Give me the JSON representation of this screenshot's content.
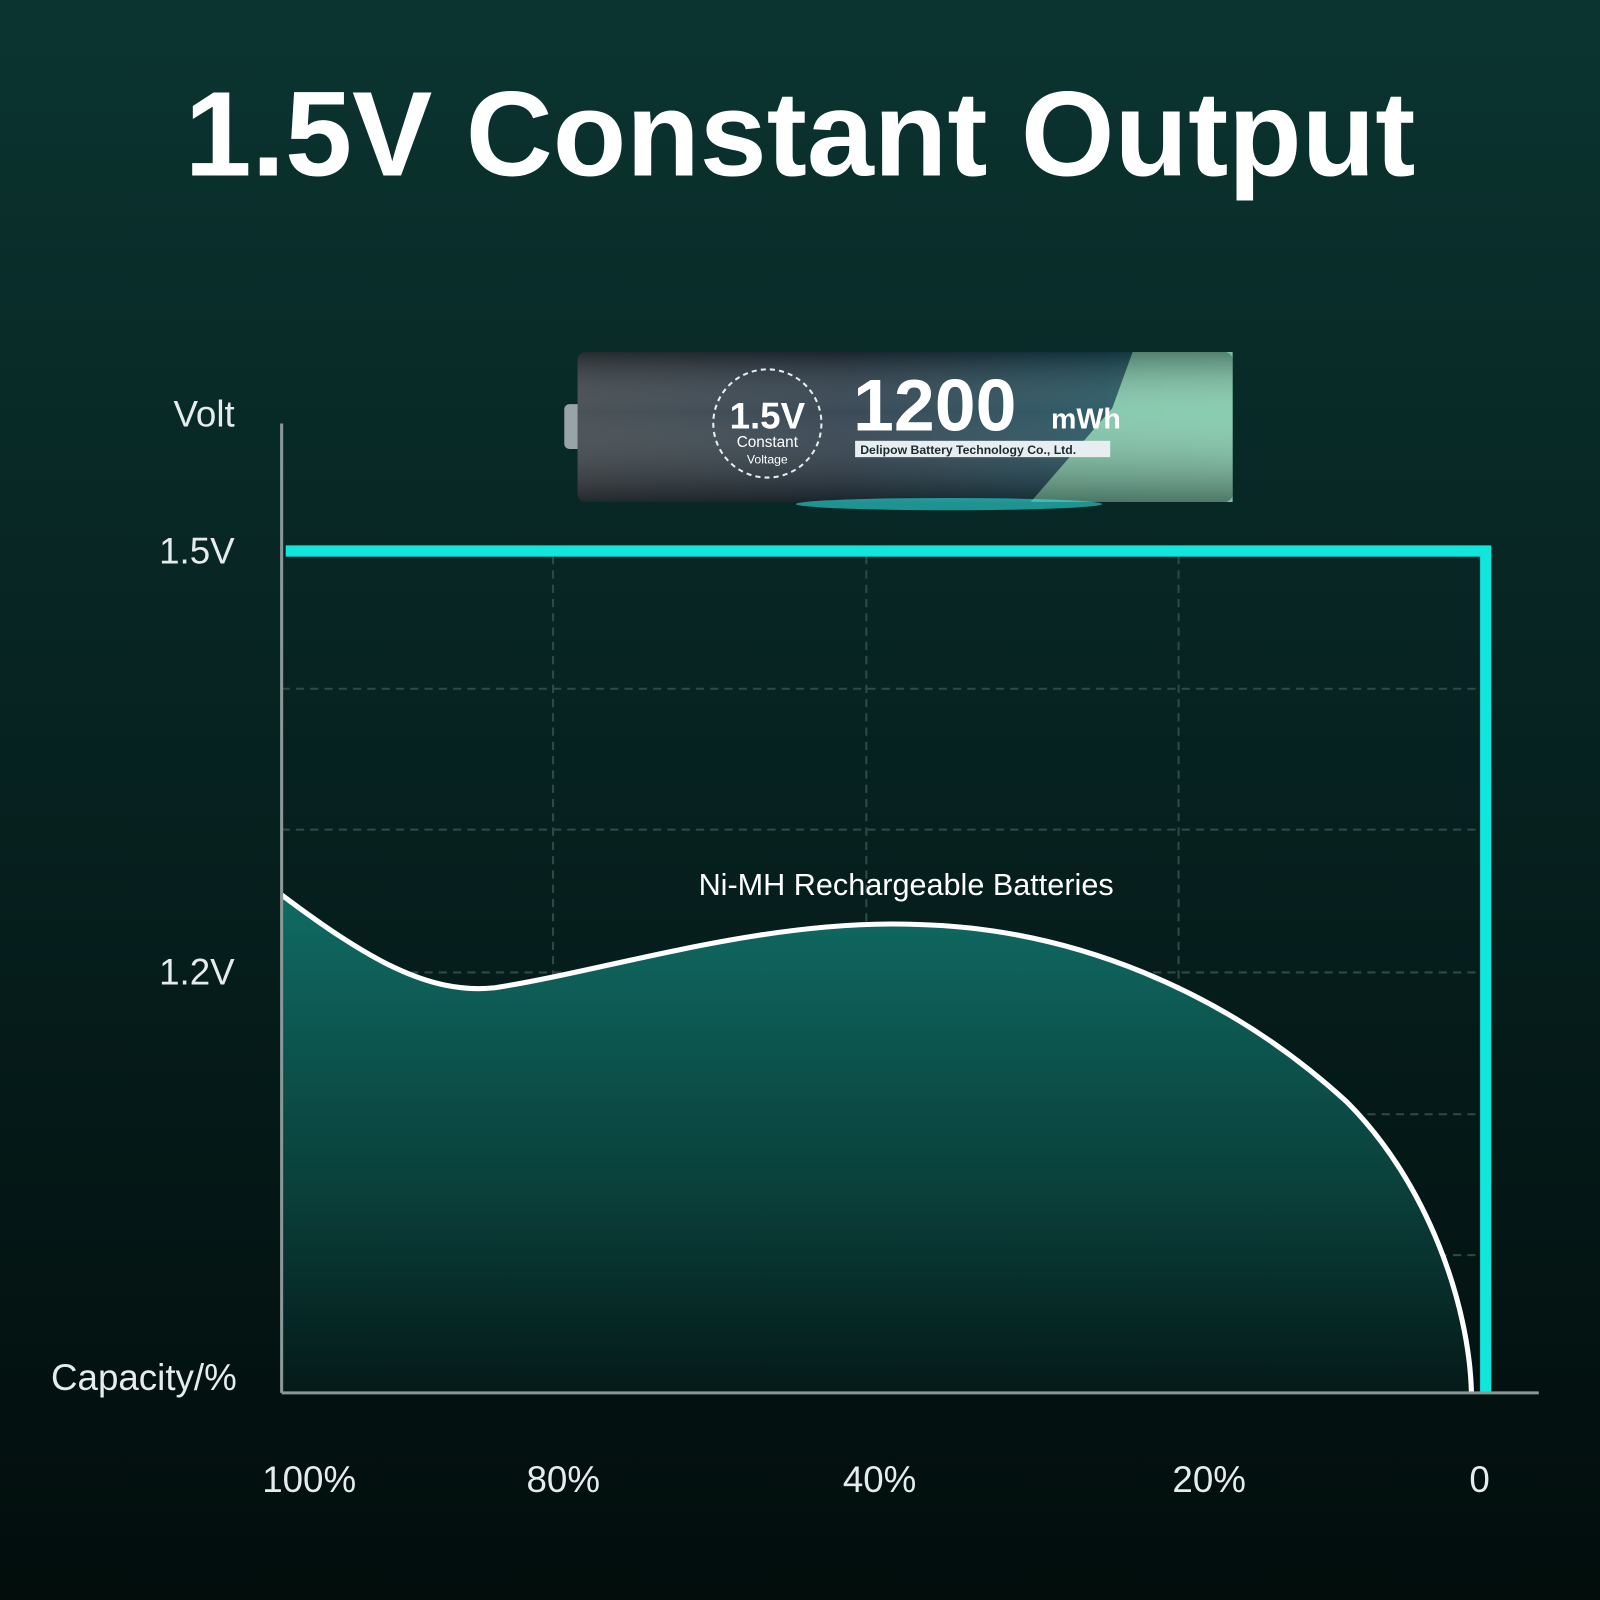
{
  "header": {
    "title": "1.5V Constant Output"
  },
  "battery": {
    "badge_voltage": "1.5V",
    "badge_line1": "Constant",
    "badge_line2": "Voltage",
    "capacity": "1200",
    "unit": "mWh",
    "maker": "Delipow Battery Technology Co., Ltd."
  },
  "graph": {
    "y_axis_label": "Volt",
    "y_ticks": [
      "1.5V",
      "1.2V"
    ],
    "x_axis_label": "Capacity/%",
    "x_ticks": [
      "100%",
      "80%",
      "40%",
      "20%",
      "0"
    ],
    "curve_label": "Ni-MH Rechargeable Batteries"
  }
}
